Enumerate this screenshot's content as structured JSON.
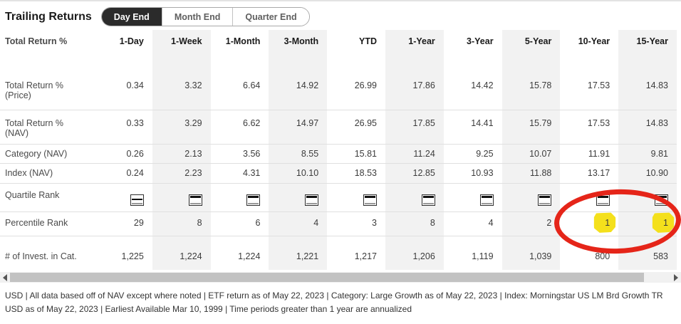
{
  "page": {
    "title": "Trailing Returns"
  },
  "tabs": [
    {
      "label": "Day End",
      "active": true
    },
    {
      "label": "Month End",
      "active": false
    },
    {
      "label": "Quarter End",
      "active": false
    }
  ],
  "table": {
    "corner_label": "Total Return %",
    "columns": [
      "1-Day",
      "1-Week",
      "1-Month",
      "3-Month",
      "YTD",
      "1-Year",
      "3-Year",
      "5-Year",
      "10-Year",
      "15-Year"
    ],
    "shaded_column_indexes": [
      1,
      3,
      5,
      7,
      9
    ],
    "rows": [
      {
        "label": "Total Return %",
        "sublabel": "(Price)",
        "type": "numbers",
        "css": "r-price",
        "values": [
          "0.34",
          "3.32",
          "6.64",
          "14.92",
          "26.99",
          "17.86",
          "14.42",
          "15.78",
          "17.53",
          "14.83"
        ]
      },
      {
        "label": "Total Return %",
        "sublabel": "(NAV)",
        "type": "numbers",
        "css": "r-navrow",
        "values": [
          "0.33",
          "3.29",
          "6.62",
          "14.97",
          "26.95",
          "17.85",
          "14.41",
          "15.79",
          "17.53",
          "14.83"
        ]
      },
      {
        "label": "Category (NAV)",
        "type": "numbers",
        "css": "r-cat",
        "values": [
          "0.26",
          "2.13",
          "3.56",
          "8.55",
          "15.81",
          "11.24",
          "9.25",
          "10.07",
          "11.91",
          "9.81"
        ]
      },
      {
        "label": "Index (NAV)",
        "type": "numbers",
        "css": "r-index",
        "values": [
          "0.24",
          "2.23",
          "4.31",
          "10.10",
          "18.53",
          "12.85",
          "10.93",
          "11.88",
          "13.17",
          "10.90"
        ]
      },
      {
        "label": "Quartile Rank",
        "type": "quartile",
        "css": "r-quart",
        "values": [
          2,
          1,
          1,
          1,
          1,
          1,
          1,
          1,
          1,
          1
        ]
      },
      {
        "label": "Percentile Rank",
        "type": "numbers",
        "css": "r-pct",
        "highlighted": [
          8,
          9
        ],
        "values": [
          "29",
          "8",
          "6",
          "4",
          "3",
          "8",
          "4",
          "2",
          "1",
          "1"
        ]
      },
      {
        "label": "# of Invest. in Cat.",
        "type": "numbers",
        "css": "r-inv",
        "no_border": true,
        "values": [
          "1,225",
          "1,224",
          "1,224",
          "1,221",
          "1,217",
          "1,206",
          "1,119",
          "1,039",
          "800",
          "583"
        ]
      }
    ]
  },
  "annotations": {
    "ellipse_color": "#e52519",
    "highlight_color": "#f4e01c",
    "note": "red ellipse circling 10-Year and 15-Year Percentile Rank values, each marked with yellow highlighter"
  },
  "colors": {
    "column_shade": "#f2f2f2",
    "active_tab_bg": "#2b2b2b",
    "quartile_fill": "#111111"
  },
  "footnote": "USD | All data based off of NAV except where noted | ETF return as of May 22, 2023 | Category: Large Growth as of May 22, 2023 | Index: Morningstar US LM Brd Growth TR USD as of May 22, 2023 | Earliest Available Mar 10, 1999 | Time periods greater than 1 year are annualized"
}
